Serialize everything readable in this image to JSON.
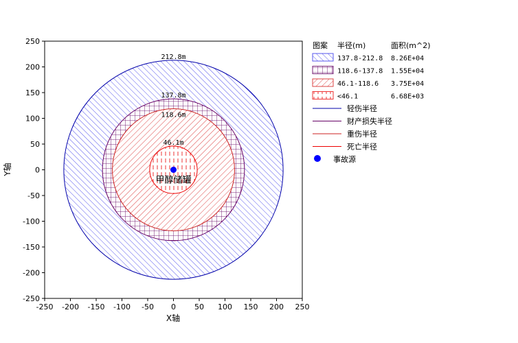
{
  "chart_data": {
    "type": "consequence-circles",
    "xlabel": "X轴",
    "ylabel": "Y轴",
    "xlim": [
      -250,
      250
    ],
    "ylim": [
      -250,
      250
    ],
    "xticks": [
      -250,
      -200,
      -150,
      -100,
      -50,
      0,
      50,
      100,
      150,
      200,
      250
    ],
    "yticks": [
      250,
      200,
      150,
      100,
      50,
      0,
      -50,
      -100,
      -150,
      -200,
      -250
    ],
    "source": {
      "x": 0,
      "y": 0,
      "label": "甲醇储罐"
    },
    "circles": [
      {
        "radius": 212.8,
        "label": "212.8m",
        "color": "#0000aa",
        "fill": "diag",
        "fillColor": "#5555ee"
      },
      {
        "radius": 137.8,
        "label": "137.8m",
        "color": "#660066",
        "fill": "grid",
        "fillColor": "#772277"
      },
      {
        "radius": 118.6,
        "label": "118.6m",
        "color": "#cc2222",
        "fill": "diag2",
        "fillColor": "#dd4444"
      },
      {
        "radius": 46.1,
        "label": "46.1m",
        "color": "#ee0000",
        "fill": "vert",
        "fillColor": "#ee3333"
      }
    ],
    "legend": {
      "headers": {
        "pattern": "图案",
        "radius": "半径(m)",
        "area": "面积(m^2)"
      },
      "rows": [
        {
          "pattern": "diag",
          "color": "#5555ee",
          "range": "137.8-212.8",
          "area": "8.26E+04"
        },
        {
          "pattern": "grid",
          "color": "#772277",
          "range": "118.6-137.8",
          "area": "1.55E+04"
        },
        {
          "pattern": "diag2",
          "color": "#dd4444",
          "range": "46.1-118.6",
          "area": "3.75E+04"
        },
        {
          "pattern": "vert",
          "color": "#ee3333",
          "range": "<46.1",
          "area": "6.68E+03"
        }
      ],
      "lines": [
        {
          "label": "轻伤半径",
          "color": "#0000aa"
        },
        {
          "label": "财产损失半径",
          "color": "#660066"
        },
        {
          "label": "重伤半径",
          "color": "#cc2222"
        },
        {
          "label": "死亡半径",
          "color": "#ee0000"
        }
      ],
      "source_label": "事故源",
      "source_color": "#0000ff"
    }
  }
}
